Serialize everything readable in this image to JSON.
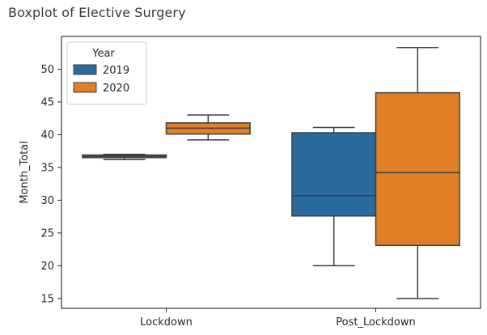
{
  "page": {
    "title": "Boxplot of Elective Surgery"
  },
  "chart_data": {
    "type": "boxplot",
    "title": "Boxplot of Elective Surgery",
    "xlabel": "",
    "ylabel": "Month_Total",
    "categories": [
      "Lockdown",
      "Post_Lockdown"
    ],
    "ylim": [
      13.5,
      55.0
    ],
    "yticks": [
      15,
      20,
      25,
      30,
      35,
      40,
      45,
      50
    ],
    "grid": false,
    "legend": {
      "title": "Year",
      "placement": "top-left"
    },
    "series": [
      {
        "name": "2019",
        "color": "#2b6a9c",
        "boxes": [
          {
            "category": "Lockdown",
            "whisker_low": 36.2,
            "q1": 36.5,
            "median": 36.7,
            "q3": 36.9,
            "whisker_high": 37.0
          },
          {
            "category": "Post_Lockdown",
            "whisker_low": 20.0,
            "q1": 27.6,
            "median": 30.7,
            "q3": 40.3,
            "whisker_high": 41.1
          }
        ]
      },
      {
        "name": "2020",
        "color": "#e07f26",
        "boxes": [
          {
            "category": "Lockdown",
            "whisker_low": 39.2,
            "q1": 40.1,
            "median": 41.0,
            "q3": 41.8,
            "whisker_high": 43.0
          },
          {
            "category": "Post_Lockdown",
            "whisker_low": 15.0,
            "q1": 23.1,
            "median": 34.2,
            "q3": 46.4,
            "whisker_high": 53.3
          }
        ]
      }
    ]
  }
}
